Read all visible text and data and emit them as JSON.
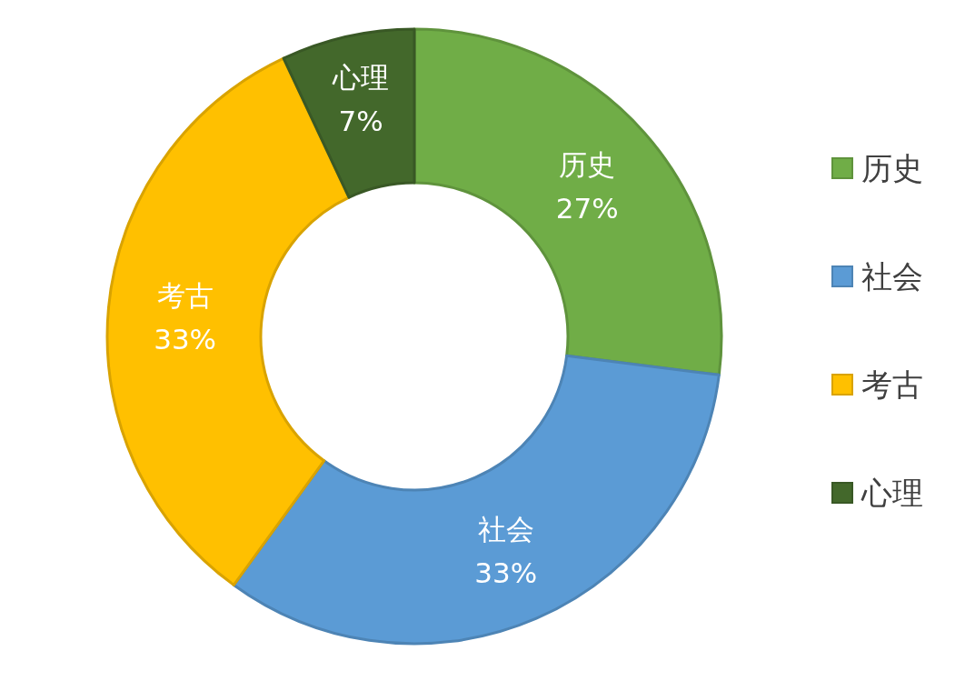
{
  "chart_data": {
    "type": "donut",
    "categories": [
      "历史",
      "社会",
      "考古",
      "心理"
    ],
    "values": [
      27,
      33,
      33,
      7
    ],
    "colors": [
      "#70ad47",
      "#5b9bd5",
      "#ffc000",
      "#43682b"
    ],
    "value_labels": [
      "27%",
      "33%",
      "33%",
      "7%"
    ],
    "legend": "right"
  }
}
